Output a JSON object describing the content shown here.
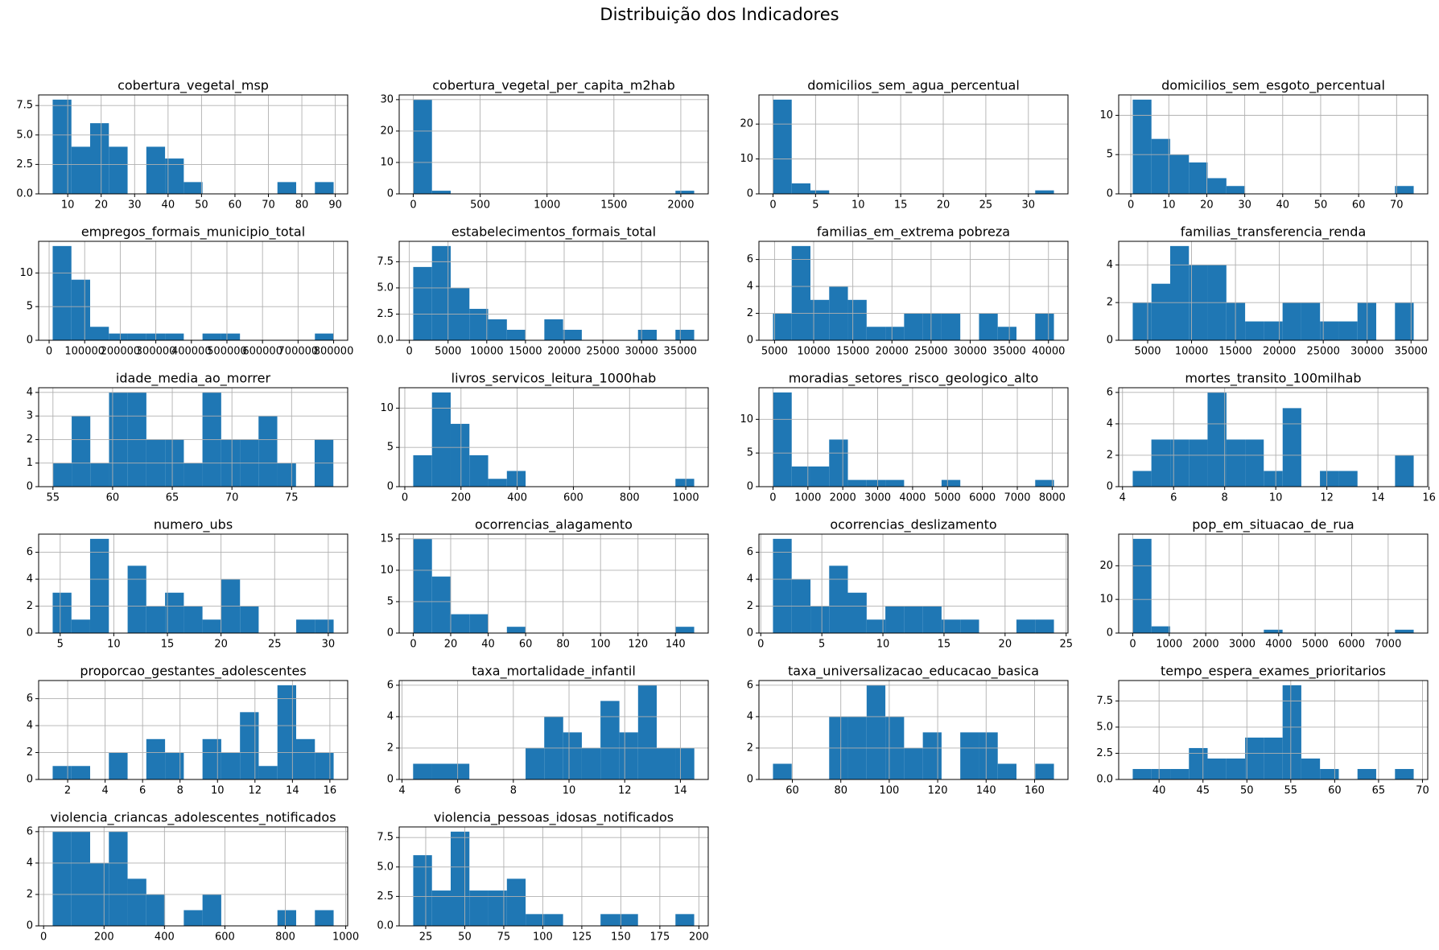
{
  "title": "Distribuição dos Indicadores",
  "chart_data": [
    {
      "type": "histogram",
      "title": "cobertura_vegetal_msp",
      "color": "#1f77b4",
      "grid": true,
      "bins": [
        5.5,
        11.1,
        16.7,
        22.3,
        27.9,
        33.5,
        39.1,
        44.7,
        50.3,
        55.9,
        61.5,
        67.1,
        72.7,
        78.3,
        83.9,
        89.5
      ],
      "values": [
        8,
        4,
        6,
        4,
        0,
        4,
        3,
        1,
        0,
        0,
        0,
        0,
        1,
        0,
        1
      ],
      "xlim": [
        1.3,
        93.7
      ],
      "xticks": [
        10,
        20,
        30,
        40,
        50,
        60,
        70,
        80,
        90
      ],
      "ylim": [
        0,
        8.4
      ],
      "yticks": [
        {
          "value": 0,
          "label": "0.0"
        },
        {
          "value": 2.5,
          "label": "2.5"
        },
        {
          "value": 5,
          "label": "5.0"
        },
        {
          "value": 7.5,
          "label": "7.5"
        }
      ]
    },
    {
      "type": "histogram",
      "title": "cobertura_vegetal_per_capita_m2hab",
      "color": "#1f77b4",
      "grid": true,
      "bins": [
        0,
        140,
        280,
        420,
        560,
        700,
        840,
        980,
        1120,
        1260,
        1400,
        1540,
        1680,
        1820,
        1960,
        2100
      ],
      "values": [
        30,
        1,
        0,
        0,
        0,
        0,
        0,
        0,
        0,
        0,
        0,
        0,
        0,
        0,
        1
      ],
      "xlim": [
        -105,
        2205
      ],
      "xticks": [
        0,
        500,
        1000,
        1500,
        2000
      ],
      "ylim": [
        0,
        31.5
      ],
      "yticks": [
        0,
        10,
        20,
        30
      ]
    },
    {
      "type": "histogram",
      "title": "domicilios_sem_agua_percentual",
      "color": "#1f77b4",
      "grid": true,
      "bins": [
        0,
        2.2,
        4.4,
        6.6,
        8.8,
        11,
        13.2,
        15.4,
        17.6,
        19.8,
        22,
        24.2,
        26.4,
        28.6,
        30.8,
        33
      ],
      "values": [
        27,
        3,
        1,
        0,
        0,
        0,
        0,
        0,
        0,
        0,
        0,
        0,
        0,
        0,
        1
      ],
      "xlim": [
        -1.65,
        34.65
      ],
      "xticks": [
        0,
        5,
        10,
        15,
        20,
        25,
        30
      ],
      "ylim": [
        0,
        28.35
      ],
      "yticks": [
        0,
        10,
        20
      ]
    },
    {
      "type": "histogram",
      "title": "domicilios_sem_esgoto_percentual",
      "color": "#1f77b4",
      "grid": true,
      "bins": [
        0.5,
        5.43,
        10.37,
        15.3,
        20.23,
        25.17,
        30.1,
        35.03,
        39.97,
        44.9,
        49.83,
        54.77,
        59.7,
        64.63,
        69.57,
        74.5
      ],
      "values": [
        12,
        7,
        5,
        4,
        2,
        1,
        0,
        0,
        0,
        0,
        0,
        0,
        0,
        0,
        1
      ],
      "xlim": [
        -3.2,
        78.2
      ],
      "xticks": [
        0,
        10,
        20,
        30,
        40,
        50,
        60,
        70
      ],
      "ylim": [
        0,
        12.6
      ],
      "yticks": [
        0,
        5,
        10
      ]
    },
    {
      "type": "histogram",
      "title": "empregos_formais_municipio_total",
      "color": "#1f77b4",
      "grid": true,
      "bins": [
        10000,
        62667,
        115333,
        168000,
        220667,
        273333,
        326000,
        378667,
        431333,
        484000,
        536667,
        589333,
        642000,
        694667,
        747333,
        800000
      ],
      "values": [
        14,
        9,
        2,
        1,
        1,
        1,
        1,
        0,
        1,
        1,
        0,
        0,
        0,
        0,
        1
      ],
      "xlim": [
        -29500,
        839500
      ],
      "xticks": [
        0,
        100000,
        200000,
        300000,
        400000,
        500000,
        600000,
        700000,
        800000
      ],
      "ylim": [
        0,
        14.7
      ],
      "yticks": [
        0,
        5,
        10
      ]
    },
    {
      "type": "histogram",
      "title": "estabelecimentos_formais_total",
      "color": "#1f77b4",
      "grid": true,
      "bins": [
        500,
        2920,
        5340,
        7760,
        10180,
        12600,
        15020,
        17440,
        19860,
        22280,
        24700,
        27120,
        29540,
        31960,
        34380,
        36800
      ],
      "values": [
        7,
        9,
        5,
        3,
        2,
        1,
        0,
        2,
        1,
        0,
        0,
        0,
        1,
        0,
        1
      ],
      "xlim": [
        -1315,
        38615
      ],
      "xticks": [
        0,
        5000,
        10000,
        15000,
        20000,
        25000,
        30000,
        35000
      ],
      "ylim": [
        0,
        9.45
      ],
      "yticks": [
        {
          "value": 0,
          "label": "0.0"
        },
        {
          "value": 2.5,
          "label": "2.5"
        },
        {
          "value": 5,
          "label": "5.0"
        },
        {
          "value": 7.5,
          "label": "7.5"
        }
      ]
    },
    {
      "type": "histogram",
      "title": "familias_em_extrema pobreza",
      "color": "#1f77b4",
      "grid": true,
      "bins": [
        4800,
        7193,
        9587,
        11980,
        14373,
        16767,
        19160,
        21553,
        23947,
        26340,
        28733,
        31127,
        33520,
        35913,
        38307,
        40700
      ],
      "values": [
        2,
        7,
        3,
        4,
        3,
        1,
        1,
        2,
        2,
        2,
        0,
        2,
        1,
        0,
        2
      ],
      "xlim": [
        3005,
        42495
      ],
      "xticks": [
        5000,
        10000,
        15000,
        20000,
        25000,
        30000,
        35000,
        40000
      ],
      "ylim": [
        0,
        7.35
      ],
      "yticks": [
        0,
        2,
        4,
        6
      ]
    },
    {
      "type": "histogram",
      "title": "familias_transferencia_renda",
      "color": "#1f77b4",
      "grid": true,
      "bins": [
        3300,
        5433,
        7567,
        9700,
        11833,
        13967,
        16100,
        18233,
        20367,
        22500,
        24633,
        26767,
        28900,
        31033,
        33167,
        35300
      ],
      "values": [
        2,
        3,
        5,
        4,
        4,
        2,
        1,
        1,
        2,
        2,
        1,
        1,
        2,
        0,
        2
      ],
      "xlim": [
        1700,
        36900
      ],
      "xticks": [
        5000,
        10000,
        15000,
        20000,
        25000,
        30000,
        35000
      ],
      "ylim": [
        0,
        5.25
      ],
      "yticks": [
        0,
        2,
        4
      ]
    },
    {
      "type": "histogram",
      "title": "idade_media_ao_morrer",
      "color": "#1f77b4",
      "grid": true,
      "bins": [
        55,
        56.57,
        58.13,
        59.7,
        61.27,
        62.83,
        64.4,
        65.97,
        67.53,
        69.1,
        70.67,
        72.23,
        73.8,
        75.37,
        76.93,
        78.5
      ],
      "values": [
        1,
        3,
        1,
        4,
        4,
        2,
        2,
        1,
        4,
        2,
        2,
        3,
        1,
        0,
        2
      ],
      "xlim": [
        53.8,
        79.7
      ],
      "xticks": [
        55,
        60,
        65,
        70,
        75
      ],
      "ylim": [
        0,
        4.2
      ],
      "yticks": [
        0,
        1,
        2,
        3,
        4
      ]
    },
    {
      "type": "histogram",
      "title": "livros_servicos_leitura_1000hab",
      "color": "#1f77b4",
      "grid": true,
      "bins": [
        30,
        96.7,
        163.3,
        230,
        296.7,
        363.3,
        430,
        496.7,
        563.3,
        630,
        696.7,
        763.3,
        830,
        896.7,
        963.3,
        1030
      ],
      "values": [
        4,
        12,
        8,
        4,
        1,
        2,
        0,
        0,
        0,
        0,
        0,
        0,
        0,
        0,
        1
      ],
      "xlim": [
        -20,
        1080
      ],
      "xticks": [
        0,
        200,
        400,
        600,
        800,
        1000
      ],
      "ylim": [
        0,
        12.6
      ],
      "yticks": [
        0,
        5,
        10
      ]
    },
    {
      "type": "histogram",
      "title": "moradias_setores_risco_geologico_alto",
      "color": "#1f77b4",
      "grid": true,
      "bins": [
        0,
        537,
        1073,
        1610,
        2147,
        2683,
        3220,
        3757,
        4293,
        4830,
        5367,
        5903,
        6440,
        6977,
        7513,
        8050
      ],
      "values": [
        14,
        3,
        3,
        7,
        1,
        1,
        1,
        0,
        0,
        1,
        0,
        0,
        0,
        0,
        1
      ],
      "xlim": [
        -402,
        8452
      ],
      "xticks": [
        0,
        1000,
        2000,
        3000,
        4000,
        5000,
        6000,
        7000,
        8000
      ],
      "ylim": [
        0,
        14.7
      ],
      "yticks": [
        0,
        5,
        10
      ]
    },
    {
      "type": "histogram",
      "title": "mortes_transito_100milhab",
      "color": "#1f77b4",
      "grid": true,
      "bins": [
        4.4,
        5.13,
        5.87,
        6.6,
        7.33,
        8.07,
        8.8,
        9.53,
        10.27,
        11,
        11.73,
        12.47,
        13.2,
        13.93,
        14.67,
        15.4
      ],
      "values": [
        1,
        3,
        3,
        3,
        6,
        3,
        3,
        1,
        5,
        0,
        1,
        1,
        0,
        0,
        2
      ],
      "xlim": [
        3.85,
        15.95
      ],
      "xticks": [
        4,
        6,
        8,
        10,
        12,
        14,
        16
      ],
      "ylim": [
        0,
        6.3
      ],
      "yticks": [
        0,
        2,
        4,
        6
      ]
    },
    {
      "type": "histogram",
      "title": "numero_ubs",
      "color": "#1f77b4",
      "grid": true,
      "bins": [
        4.3,
        6.05,
        7.79,
        9.54,
        11.29,
        13.03,
        14.78,
        16.53,
        18.27,
        20.02,
        21.77,
        23.51,
        25.26,
        27.01,
        28.75,
        30.5
      ],
      "values": [
        3,
        1,
        7,
        0,
        5,
        2,
        3,
        2,
        1,
        4,
        2,
        0,
        0,
        1,
        1
      ],
      "xlim": [
        2.99,
        31.81
      ],
      "xticks": [
        5,
        10,
        15,
        20,
        25,
        30
      ],
      "ylim": [
        0,
        7.35
      ],
      "yticks": [
        0,
        2,
        4,
        6
      ]
    },
    {
      "type": "histogram",
      "title": "ocorrencias_alagamento",
      "color": "#1f77b4",
      "grid": true,
      "bins": [
        0,
        10,
        20,
        30,
        40,
        50,
        60,
        70,
        80,
        90,
        100,
        110,
        120,
        130,
        140,
        150
      ],
      "values": [
        15,
        9,
        3,
        3,
        0,
        1,
        0,
        0,
        0,
        0,
        0,
        0,
        0,
        0,
        1
      ],
      "xlim": [
        -7.5,
        157.5
      ],
      "xticks": [
        0,
        20,
        40,
        60,
        80,
        100,
        120,
        140
      ],
      "ylim": [
        0,
        15.75
      ],
      "yticks": [
        0,
        5,
        10,
        15
      ]
    },
    {
      "type": "histogram",
      "title": "ocorrencias_deslizamento",
      "color": "#1f77b4",
      "grid": true,
      "bins": [
        1,
        2.53,
        4.07,
        5.6,
        7.13,
        8.67,
        10.2,
        11.73,
        13.27,
        14.8,
        16.33,
        17.87,
        19.4,
        20.93,
        22.47,
        24
      ],
      "values": [
        7,
        4,
        2,
        5,
        3,
        1,
        2,
        2,
        2,
        1,
        1,
        0,
        0,
        1,
        1
      ],
      "xlim": [
        -0.15,
        25.15
      ],
      "xticks": [
        0,
        5,
        10,
        15,
        20,
        25
      ],
      "ylim": [
        0,
        7.35
      ],
      "yticks": [
        0,
        2,
        4,
        6
      ]
    },
    {
      "type": "histogram",
      "title": "pop_em_situacao_de_rua",
      "color": "#1f77b4",
      "grid": true,
      "bins": [
        0,
        513,
        1027,
        1540,
        2053,
        2567,
        3080,
        3593,
        4107,
        4620,
        5133,
        5647,
        6160,
        6673,
        7187,
        7700
      ],
      "values": [
        28,
        2,
        0,
        0,
        0,
        0,
        0,
        1,
        0,
        0,
        0,
        0,
        0,
        0,
        1
      ],
      "xlim": [
        -385,
        8085
      ],
      "xticks": [
        0,
        1000,
        2000,
        3000,
        4000,
        5000,
        6000,
        7000
      ],
      "ylim": [
        0,
        29.4
      ],
      "yticks": [
        0,
        10,
        20
      ]
    },
    {
      "type": "histogram",
      "title": "proporcao_gestantes_adolescentes",
      "color": "#1f77b4",
      "grid": true,
      "bins": [
        1.2,
        2.2,
        3.2,
        4.2,
        5.2,
        6.2,
        7.2,
        8.2,
        9.2,
        10.2,
        11.2,
        12.2,
        13.2,
        14.2,
        15.2,
        16.2
      ],
      "values": [
        1,
        1,
        0,
        2,
        0,
        3,
        2,
        0,
        3,
        2,
        5,
        1,
        7,
        3,
        2
      ],
      "xlim": [
        0.45,
        16.95
      ],
      "xticks": [
        2,
        4,
        6,
        8,
        10,
        12,
        14,
        16
      ],
      "ylim": [
        0,
        7.35
      ],
      "yticks": [
        0,
        2,
        4,
        6
      ]
    },
    {
      "type": "histogram",
      "title": "taxa_mortalidade_infantil",
      "color": "#1f77b4",
      "grid": true,
      "bins": [
        4.4,
        5.07,
        5.75,
        6.42,
        7.09,
        7.77,
        8.44,
        9.11,
        9.79,
        10.46,
        11.13,
        11.81,
        12.48,
        13.15,
        13.83,
        14.5
      ],
      "values": [
        1,
        1,
        1,
        0,
        0,
        0,
        2,
        4,
        3,
        2,
        5,
        3,
        6,
        2,
        2
      ],
      "xlim": [
        3.9,
        15
      ],
      "xticks": [
        4,
        6,
        8,
        10,
        12,
        14
      ],
      "ylim": [
        0,
        6.3
      ],
      "yticks": [
        0,
        2,
        4,
        6
      ]
    },
    {
      "type": "histogram",
      "title": "taxa_universalizacao_educacao_basica",
      "color": "#1f77b4",
      "grid": true,
      "bins": [
        52,
        59.73,
        67.47,
        75.2,
        82.93,
        90.67,
        98.4,
        106.13,
        113.87,
        121.6,
        129.33,
        137.07,
        144.8,
        152.53,
        160.27,
        168
      ],
      "values": [
        1,
        0,
        0,
        4,
        4,
        6,
        4,
        2,
        3,
        0,
        3,
        3,
        1,
        0,
        1
      ],
      "xlim": [
        46.2,
        173.8
      ],
      "xticks": [
        60,
        80,
        100,
        120,
        140,
        160
      ],
      "ylim": [
        0,
        6.3
      ],
      "yticks": [
        0,
        2,
        4,
        6
      ]
    },
    {
      "type": "histogram",
      "title": "tempo_espera_exames_prioritarios",
      "color": "#1f77b4",
      "grid": true,
      "bins": [
        37,
        39.13,
        41.27,
        43.4,
        45.53,
        47.67,
        49.8,
        51.93,
        54.07,
        56.2,
        58.33,
        60.47,
        62.6,
        64.73,
        66.87,
        69
      ],
      "values": [
        1,
        1,
        1,
        3,
        2,
        2,
        4,
        4,
        9,
        2,
        1,
        0,
        1,
        0,
        1
      ],
      "xlim": [
        35.4,
        70.6
      ],
      "xticks": [
        40,
        45,
        50,
        55,
        60,
        65,
        70
      ],
      "ylim": [
        0,
        9.45
      ],
      "yticks": [
        {
          "value": 0,
          "label": "0.0"
        },
        {
          "value": 2.5,
          "label": "2.5"
        },
        {
          "value": 5,
          "label": "5.0"
        },
        {
          "value": 7.5,
          "label": "7.5"
        }
      ]
    },
    {
      "type": "histogram",
      "title": "violencia_criancas_adolescentes_notificados",
      "color": "#1f77b4",
      "grid": true,
      "bins": [
        30,
        92,
        154,
        216,
        278,
        340,
        402,
        464,
        526,
        588,
        650,
        712,
        774,
        836,
        898,
        960
      ],
      "values": [
        6,
        6,
        4,
        6,
        3,
        2,
        0,
        1,
        2,
        0,
        0,
        0,
        1,
        0,
        1
      ],
      "xlim": [
        -16.5,
        1006.5
      ],
      "xticks": [
        0,
        200,
        400,
        600,
        800,
        1000
      ],
      "ylim": [
        0,
        6.3
      ],
      "yticks": [
        0,
        2,
        4,
        6
      ]
    },
    {
      "type": "histogram",
      "title": "violencia_pessoas_idosas_notificados",
      "color": "#1f77b4",
      "grid": true,
      "bins": [
        17,
        29,
        41,
        53,
        65,
        77,
        89,
        101,
        113,
        125,
        137,
        149,
        161,
        173,
        185,
        197
      ],
      "values": [
        6,
        3,
        8,
        3,
        3,
        4,
        1,
        1,
        0,
        0,
        1,
        1,
        0,
        0,
        1
      ],
      "xlim": [
        8,
        206
      ],
      "xticks": [
        25,
        50,
        75,
        100,
        125,
        150,
        175,
        200
      ],
      "ylim": [
        0,
        8.4
      ],
      "yticks": [
        {
          "value": 0,
          "label": "0.0"
        },
        {
          "value": 2.5,
          "label": "2.5"
        },
        {
          "value": 5,
          "label": "5.0"
        },
        {
          "value": 7.5,
          "label": "7.5"
        }
      ]
    }
  ]
}
